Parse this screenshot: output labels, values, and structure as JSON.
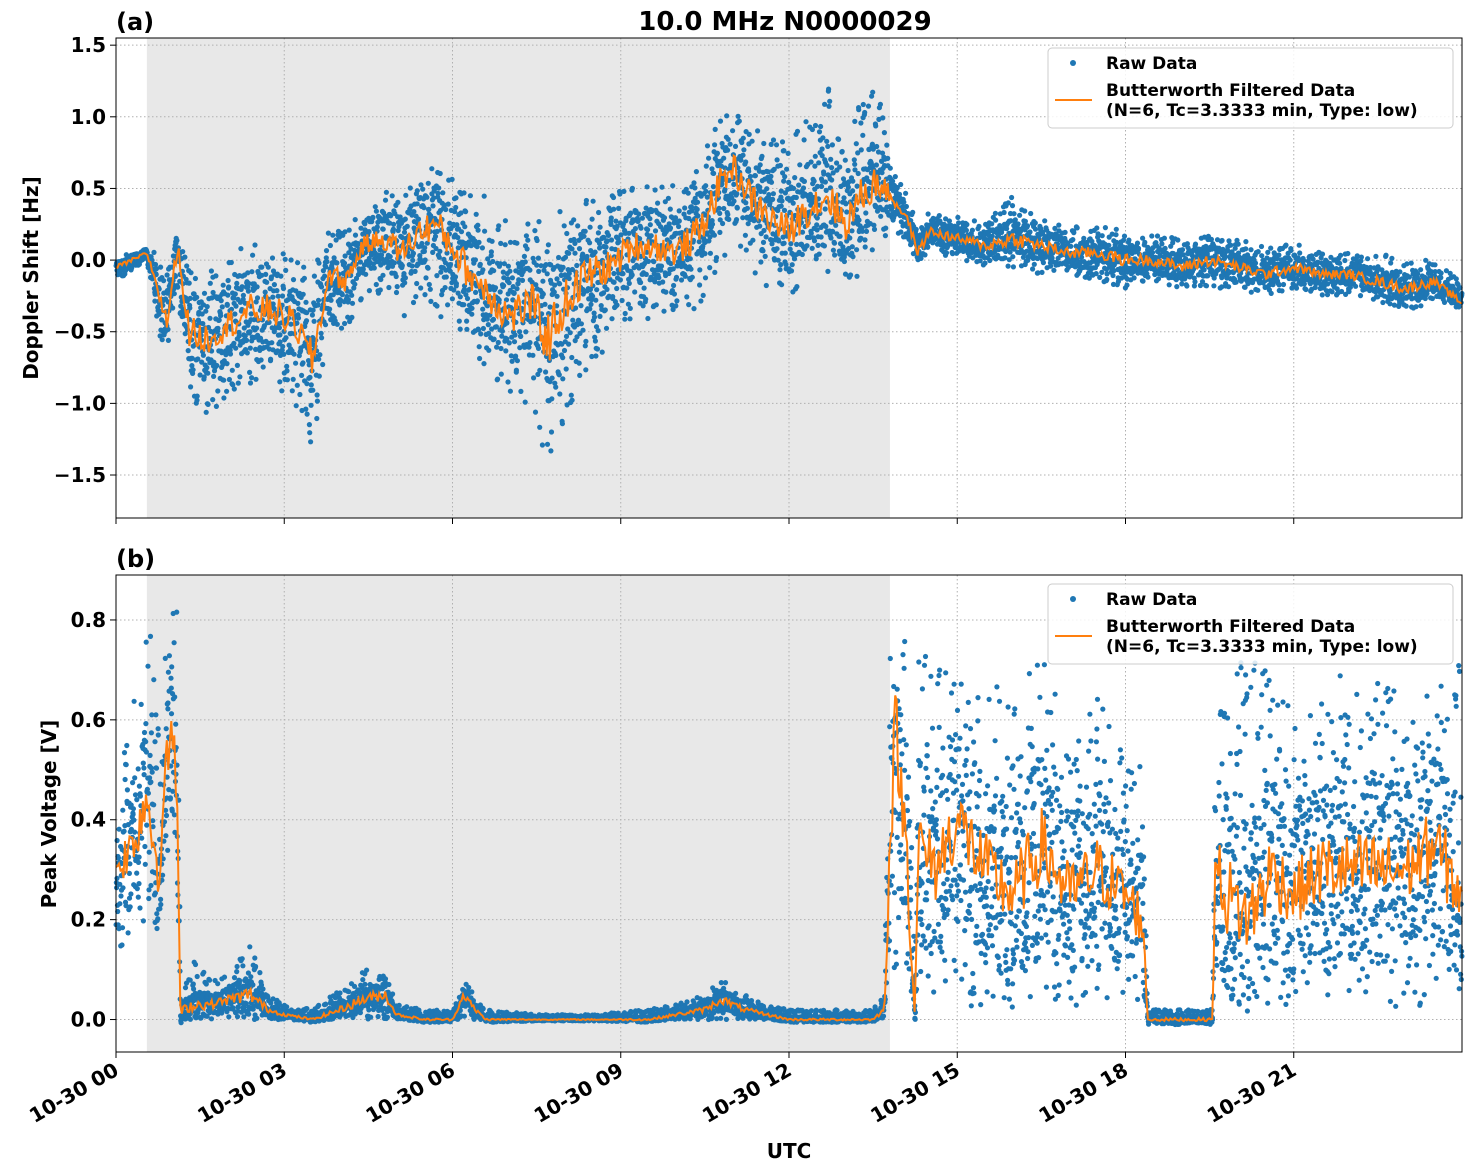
{
  "figure": {
    "title": "10.0 MHz N0000029",
    "xlabel": "UTC",
    "colors": {
      "raw": "#1f77b4",
      "filtered": "#ff7f0e",
      "night_shade": "#e8e8e8",
      "grid": "#b0b0b0"
    },
    "x_tick_labels": [
      "10-30 00",
      "10-30 03",
      "10-30 06",
      "10-30 09",
      "10-30 12",
      "10-30 15",
      "10-30 18",
      "10-30 21"
    ],
    "legend": {
      "raw": "Raw Data",
      "filtered_line1": "Butterworth Filtered Data",
      "filtered_line2": "(N=6, Tc=3.3333 min, Type: low)"
    }
  },
  "chart_data": [
    {
      "type": "scatter",
      "panel_label": "(a)",
      "ylabel": "Doppler Shift [Hz]",
      "xlim_hours_utc": [
        0,
        24
      ],
      "ylim": [
        -1.8,
        1.55
      ],
      "y_ticks": [
        -1.5,
        -1.0,
        -0.5,
        0.0,
        0.5,
        1.0,
        1.5
      ],
      "y_tick_labels": [
        "−1.5",
        "−1.0",
        "−0.5",
        "0.0",
        "0.5",
        "1.0",
        "1.5"
      ],
      "grid": true,
      "legend_position": "top-right",
      "shaded_interval_hours": [
        0.55,
        13.8
      ],
      "series": [
        {
          "name": "Butterworth Filtered Data (N=6, Tc=3.3333 min, Type: low)",
          "x_hours": [
            0,
            0.3,
            0.55,
            0.75,
            0.9,
            1.1,
            1.3,
            1.6,
            2.0,
            2.4,
            2.8,
            3.2,
            3.5,
            3.8,
            4.1,
            4.4,
            4.8,
            5.1,
            5.4,
            5.7,
            6.0,
            6.3,
            6.6,
            7.0,
            7.4,
            7.7,
            8.0,
            8.4,
            8.8,
            9.2,
            9.6,
            10.0,
            10.4,
            10.8,
            11.0,
            11.3,
            11.6,
            12.0,
            12.3,
            12.7,
            13.0,
            13.3,
            13.6,
            13.8,
            14.1,
            14.3,
            14.5,
            15.0,
            15.5,
            16.0,
            16.5,
            17.0,
            17.5,
            18.0,
            18.5,
            19.0,
            19.5,
            20.0,
            20.5,
            21.0,
            21.5,
            22.0,
            22.5,
            23.0,
            23.5,
            24.0
          ],
          "y": [
            -0.05,
            0.0,
            0.05,
            -0.2,
            -0.45,
            0.1,
            -0.5,
            -0.55,
            -0.45,
            -0.35,
            -0.35,
            -0.45,
            -0.7,
            -0.1,
            -0.15,
            0.1,
            0.15,
            0.05,
            0.2,
            0.25,
            0.1,
            -0.1,
            -0.2,
            -0.4,
            -0.3,
            -0.55,
            -0.3,
            -0.1,
            -0.05,
            0.1,
            0.1,
            0.05,
            0.2,
            0.55,
            0.65,
            0.45,
            0.3,
            0.2,
            0.35,
            0.45,
            0.25,
            0.45,
            0.55,
            0.45,
            0.3,
            0.05,
            0.2,
            0.15,
            0.1,
            0.15,
            0.1,
            0.05,
            0.05,
            0.0,
            0.0,
            -0.05,
            0.0,
            -0.05,
            -0.1,
            -0.05,
            -0.1,
            -0.1,
            -0.15,
            -0.2,
            -0.15,
            -0.3
          ]
        },
        {
          "name": "Raw Data",
          "x_hours": [
            0,
            0.3,
            0.55,
            0.75,
            0.9,
            1.1,
            1.3,
            1.6,
            2.0,
            2.4,
            2.8,
            3.2,
            3.5,
            3.8,
            4.1,
            4.4,
            4.8,
            5.1,
            5.4,
            5.7,
            6.0,
            6.3,
            6.6,
            7.0,
            7.4,
            7.7,
            8.0,
            8.4,
            8.8,
            9.2,
            9.6,
            10.0,
            10.4,
            10.8,
            11.0,
            11.3,
            11.6,
            12.0,
            12.3,
            12.7,
            13.0,
            13.3,
            13.6,
            13.8,
            14.1,
            14.3,
            14.5,
            15.0,
            15.5,
            16.0,
            16.5,
            17.0,
            17.5,
            18.0,
            18.5,
            19.0,
            19.5,
            20.0,
            20.5,
            21.0,
            21.5,
            22.0,
            22.5,
            23.0,
            23.5,
            24.0
          ],
          "y_low": [
            -0.12,
            -0.1,
            0.0,
            -0.5,
            -0.8,
            -0.2,
            -1.0,
            -1.1,
            -0.95,
            -0.9,
            -0.9,
            -1.0,
            -1.35,
            -0.45,
            -0.5,
            -0.25,
            -0.25,
            -0.45,
            -0.3,
            -0.35,
            -0.5,
            -0.6,
            -0.75,
            -1.0,
            -1.0,
            -1.5,
            -1.1,
            -0.75,
            -0.6,
            -0.4,
            -0.45,
            -0.35,
            -0.35,
            -0.05,
            0.15,
            -0.1,
            -0.2,
            -0.25,
            -0.15,
            -0.1,
            -0.15,
            -0.1,
            0.1,
            0.2,
            0.15,
            -0.05,
            0.05,
            0.0,
            -0.05,
            -0.05,
            -0.1,
            -0.1,
            -0.15,
            -0.2,
            -0.15,
            -0.2,
            -0.2,
            -0.2,
            -0.25,
            -0.2,
            -0.25,
            -0.25,
            -0.3,
            -0.35,
            -0.3,
            -0.35
          ],
          "y_high": [
            0.02,
            0.05,
            0.1,
            0.05,
            -0.1,
            0.25,
            0.0,
            -0.05,
            0.0,
            0.15,
            0.1,
            0.0,
            -0.1,
            0.25,
            0.2,
            0.35,
            0.5,
            0.45,
            0.6,
            0.7,
            0.65,
            0.45,
            0.45,
            0.3,
            0.3,
            0.35,
            0.35,
            0.45,
            0.45,
            0.55,
            0.5,
            0.55,
            0.75,
            1.0,
            1.1,
            0.95,
            0.85,
            0.85,
            1.0,
            1.2,
            0.95,
            1.15,
            1.2,
            0.7,
            0.45,
            0.25,
            0.35,
            0.3,
            0.3,
            0.45,
            0.3,
            0.25,
            0.25,
            0.2,
            0.2,
            0.15,
            0.2,
            0.15,
            0.1,
            0.12,
            0.05,
            0.05,
            0.05,
            0.0,
            0.0,
            -0.15
          ]
        }
      ]
    },
    {
      "type": "scatter",
      "panel_label": "(b)",
      "ylabel": "Peak Voltage [V]",
      "xlim_hours_utc": [
        0,
        24
      ],
      "ylim": [
        -0.065,
        0.89
      ],
      "y_ticks": [
        0.0,
        0.2,
        0.4,
        0.6,
        0.8
      ],
      "y_tick_labels": [
        "0.0",
        "0.2",
        "0.4",
        "0.6",
        "0.8"
      ],
      "grid": true,
      "legend_position": "top-right",
      "shaded_interval_hours": [
        0.55,
        13.8
      ],
      "series": [
        {
          "name": "Butterworth Filtered Data (N=6, Tc=3.3333 min, Type: low)",
          "x_hours": [
            0,
            0.3,
            0.55,
            0.75,
            0.9,
            1.0,
            1.1,
            1.15,
            1.2,
            1.4,
            1.7,
            2.0,
            2.4,
            2.7,
            3.0,
            3.5,
            4.0,
            4.4,
            4.8,
            5.0,
            5.5,
            6.0,
            6.2,
            6.4,
            6.6,
            7.5,
            8.5,
            9.5,
            10.0,
            10.5,
            10.8,
            11.2,
            11.6,
            12.0,
            12.5,
            13.0,
            13.5,
            13.7,
            13.8,
            13.9,
            14.0,
            14.1,
            14.2,
            14.25,
            14.3,
            14.6,
            15.0,
            15.5,
            16.0,
            16.5,
            17.0,
            17.5,
            18.0,
            18.3,
            18.4,
            18.6,
            19.0,
            19.5,
            19.55,
            19.6,
            19.8,
            20.2,
            20.6,
            21.0,
            21.5,
            22.0,
            22.5,
            23.0,
            23.5,
            24.0
          ],
          "y": [
            0.3,
            0.35,
            0.45,
            0.3,
            0.5,
            0.6,
            0.4,
            0.0,
            0.02,
            0.03,
            0.03,
            0.04,
            0.05,
            0.02,
            0.01,
            0.0,
            0.02,
            0.04,
            0.05,
            0.01,
            0.0,
            0.0,
            0.05,
            0.02,
            0.0,
            0.0,
            0.0,
            0.0,
            0.01,
            0.02,
            0.04,
            0.02,
            0.01,
            0.0,
            0.0,
            0.0,
            0.0,
            0.02,
            0.35,
            0.6,
            0.45,
            0.35,
            0.1,
            0.0,
            0.35,
            0.3,
            0.4,
            0.3,
            0.25,
            0.35,
            0.25,
            0.3,
            0.25,
            0.2,
            0.0,
            0.0,
            0.0,
            0.0,
            0.0,
            0.3,
            0.25,
            0.2,
            0.3,
            0.25,
            0.3,
            0.3,
            0.3,
            0.3,
            0.35,
            0.25
          ]
        },
        {
          "name": "Raw Data",
          "x_hours": [
            0,
            0.3,
            0.55,
            0.75,
            0.9,
            1.0,
            1.1,
            1.15,
            1.2,
            1.4,
            1.7,
            2.0,
            2.4,
            2.7,
            3.0,
            3.5,
            4.0,
            4.4,
            4.8,
            5.0,
            5.5,
            6.0,
            6.2,
            6.4,
            6.6,
            7.5,
            8.5,
            9.5,
            10.0,
            10.5,
            10.8,
            11.2,
            11.6,
            12.0,
            12.5,
            13.0,
            13.5,
            13.7,
            13.8,
            13.9,
            14.0,
            14.1,
            14.2,
            14.25,
            14.3,
            14.6,
            15.0,
            15.5,
            16.0,
            16.5,
            17.0,
            17.5,
            18.0,
            18.3,
            18.4,
            18.6,
            19.0,
            19.5,
            19.55,
            19.6,
            19.8,
            20.2,
            20.6,
            21.0,
            21.5,
            22.0,
            22.5,
            23.0,
            23.5,
            24.0
          ],
          "y_low": [
            0.14,
            0.15,
            0.2,
            0.2,
            0.3,
            0.35,
            0.3,
            0.0,
            0.0,
            0.0,
            0.0,
            0.0,
            0.0,
            0.0,
            0.0,
            0.0,
            0.0,
            0.0,
            0.0,
            0.0,
            0.0,
            0.0,
            0.0,
            0.0,
            0.0,
            0.0,
            0.0,
            0.0,
            0.0,
            0.0,
            0.0,
            0.0,
            0.0,
            0.0,
            0.0,
            0.0,
            0.0,
            0.0,
            0.1,
            0.1,
            0.1,
            0.05,
            0.05,
            0.0,
            0.05,
            0.05,
            0.03,
            0.02,
            0.02,
            0.03,
            0.02,
            0.03,
            0.02,
            0.02,
            -0.01,
            -0.01,
            -0.01,
            -0.01,
            -0.01,
            0.02,
            0.03,
            0.03,
            0.02,
            0.03,
            0.02,
            0.03,
            0.03,
            0.02,
            0.03,
            0.05
          ],
          "y_high": [
            0.45,
            0.65,
            0.78,
            0.76,
            0.82,
            0.83,
            0.82,
            0.05,
            0.07,
            0.12,
            0.08,
            0.09,
            0.15,
            0.05,
            0.03,
            0.02,
            0.06,
            0.1,
            0.1,
            0.03,
            0.02,
            0.02,
            0.08,
            0.05,
            0.02,
            0.01,
            0.01,
            0.02,
            0.03,
            0.05,
            0.08,
            0.05,
            0.03,
            0.02,
            0.02,
            0.02,
            0.02,
            0.05,
            0.84,
            0.82,
            0.78,
            0.75,
            0.4,
            0.0,
            0.75,
            0.7,
            0.7,
            0.7,
            0.65,
            0.73,
            0.6,
            0.65,
            0.55,
            0.5,
            0.02,
            0.02,
            0.02,
            0.02,
            0.02,
            0.7,
            0.78,
            0.72,
            0.72,
            0.6,
            0.68,
            0.7,
            0.72,
            0.62,
            0.7,
            0.75
          ]
        }
      ]
    }
  ]
}
